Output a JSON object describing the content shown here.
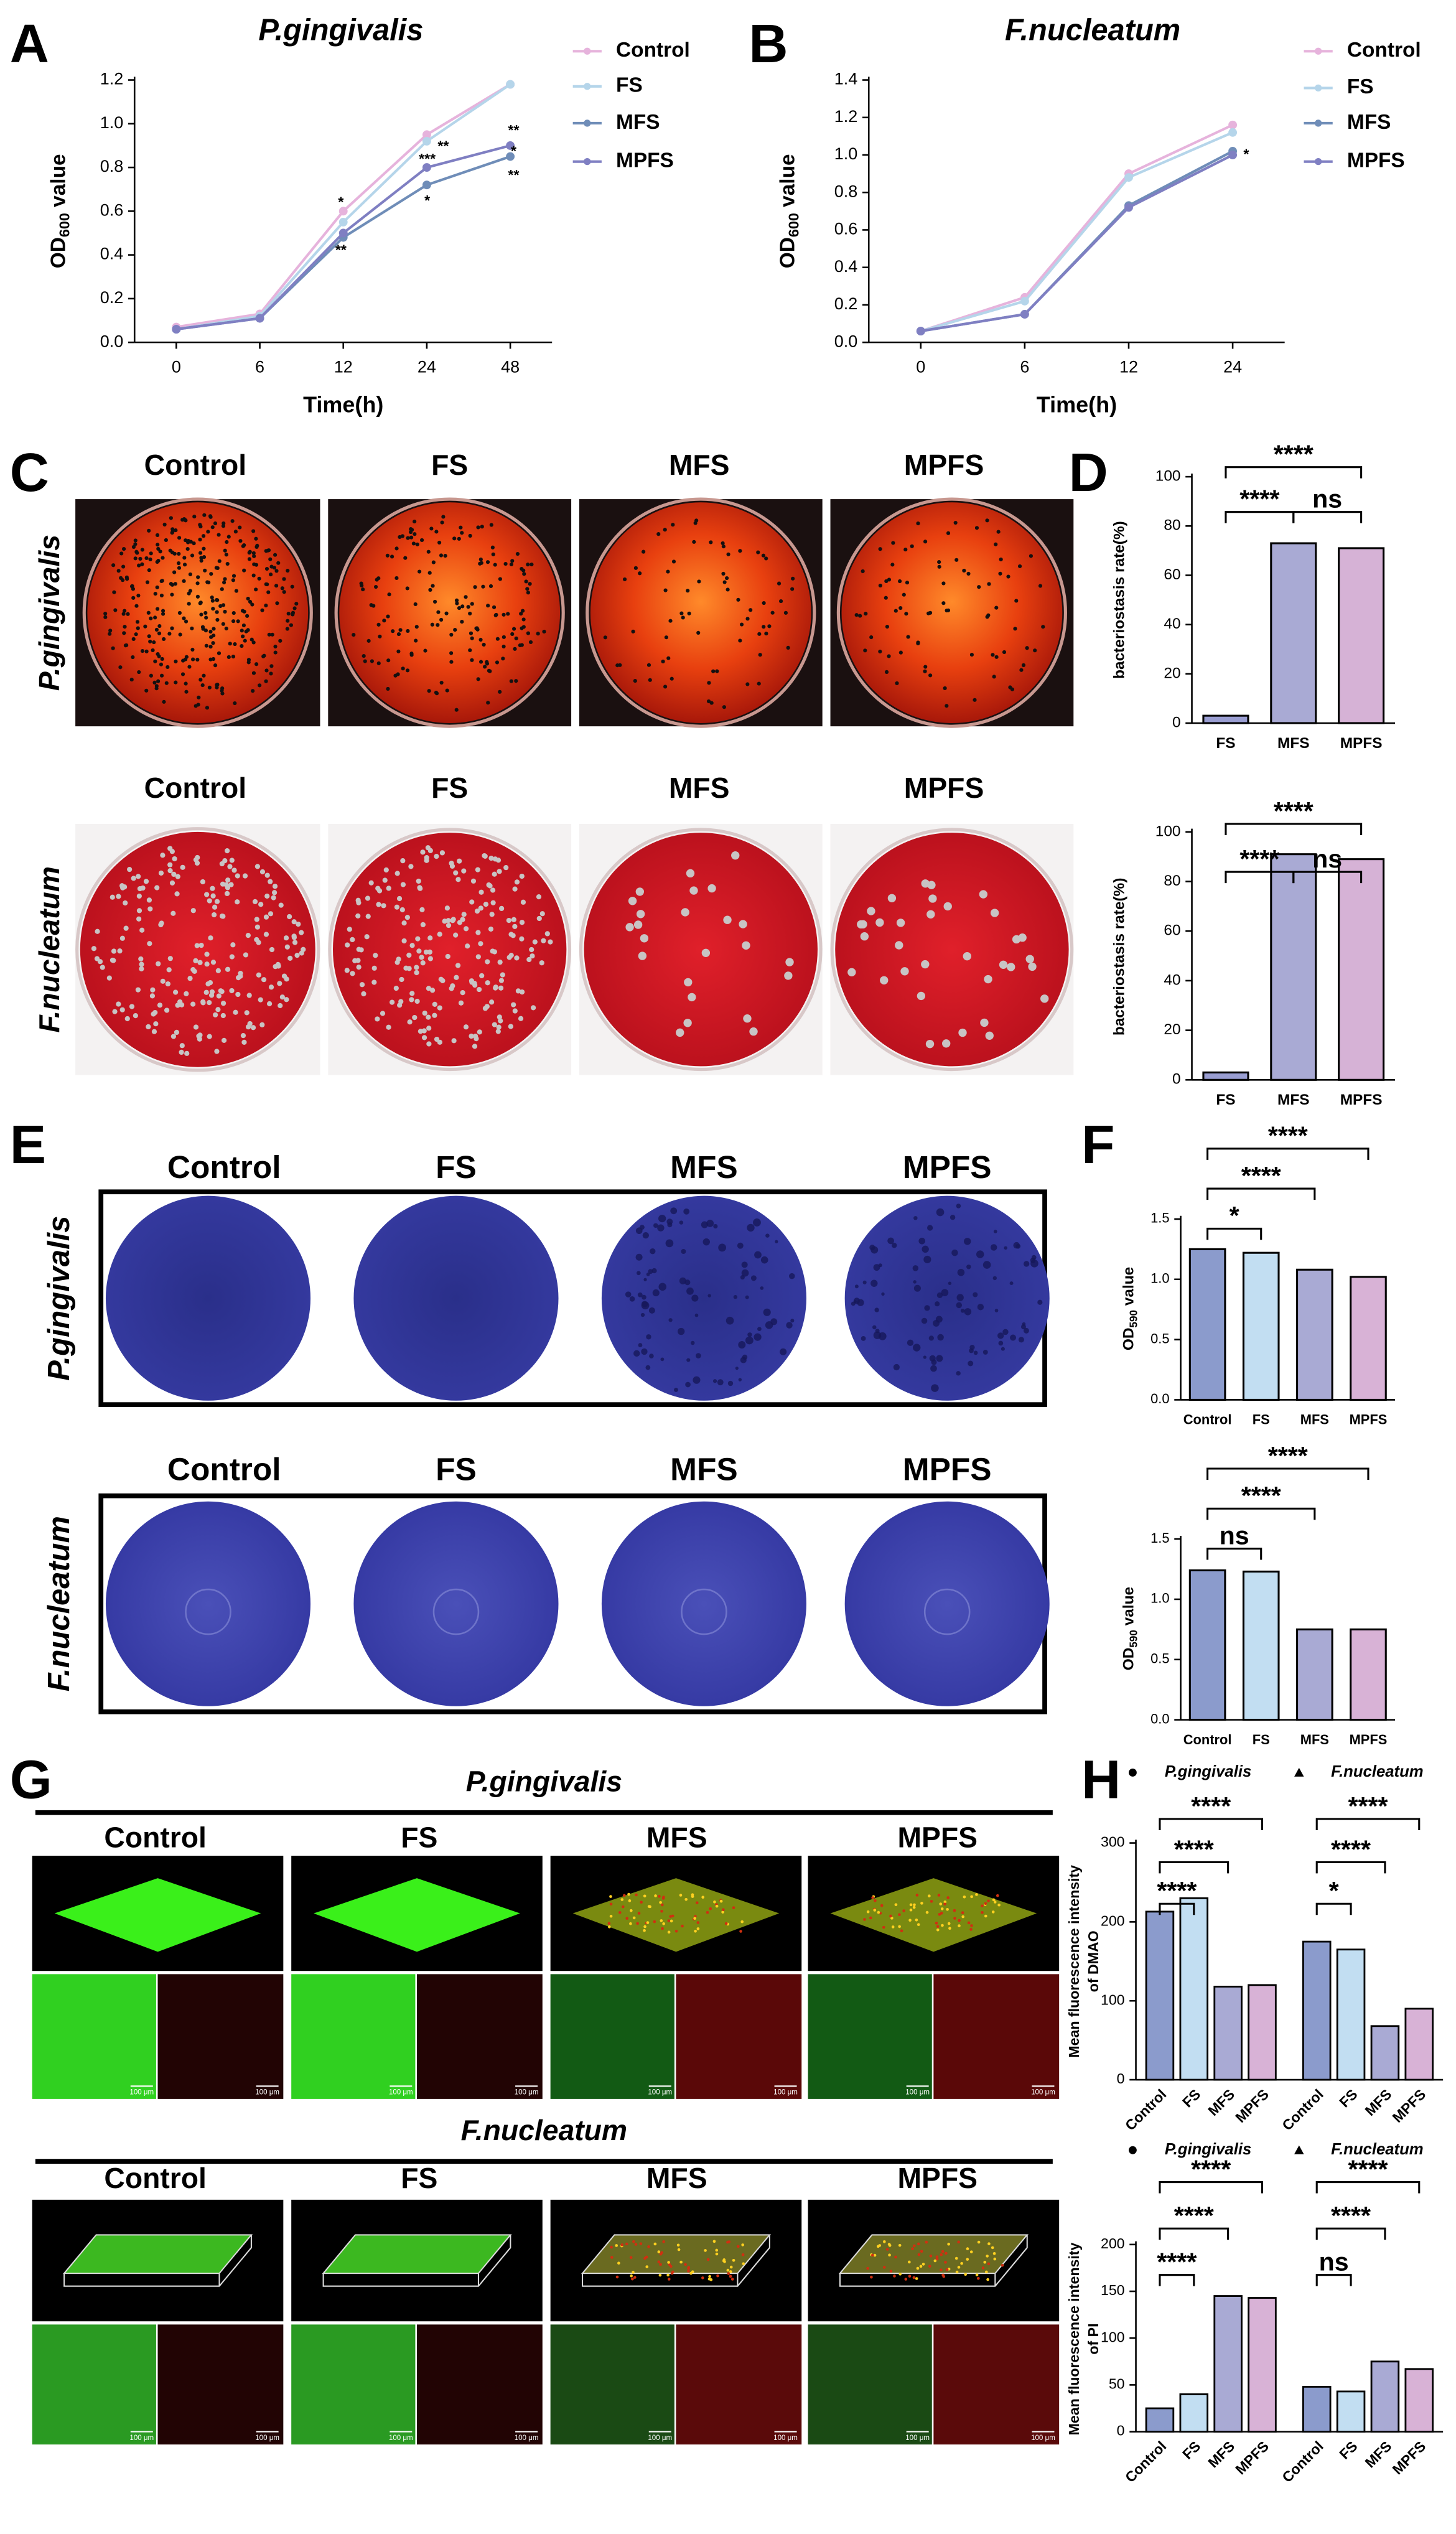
{
  "chart_data": [
    {
      "type": "line",
      "title": "P.gingivalis",
      "x_label": "Time(h)",
      "y_label": {
        "text": "OD",
        "subscript": "600",
        "suffix": " value"
      },
      "categories": [
        "0",
        "6",
        "12",
        "24",
        "48"
      ],
      "series": [
        {
          "name": "Control",
          "color": "#e6b3dc",
          "values": [
            0.07,
            0.13,
            0.6,
            0.95,
            1.18
          ]
        },
        {
          "name": "FS",
          "color": "#b5d5ea",
          "values": [
            0.06,
            0.12,
            0.55,
            0.92,
            1.18
          ]
        },
        {
          "name": "MFS",
          "color": "#6f8db8",
          "values": [
            0.06,
            0.11,
            0.48,
            0.72,
            0.85
          ]
        },
        {
          "name": "MPFS",
          "color": "#7f7fc2",
          "values": [
            0.06,
            0.11,
            0.5,
            0.8,
            0.9
          ]
        }
      ],
      "ylim": [
        0,
        1.2
      ],
      "yticks": [
        {
          "value": 0,
          "label": "0.0"
        },
        0.2,
        0.4,
        0.6,
        0.8,
        {
          "value": 1,
          "label": "1.0"
        },
        1.2
      ],
      "annotations": [
        "*",
        "**",
        "**",
        "***",
        "*",
        "**",
        "*",
        "**"
      ]
    },
    {
      "type": "line",
      "title": "F.nucleatum",
      "x_label": "Time(h)",
      "y_label": {
        "text": "OD",
        "subscript": "600",
        "suffix": " value"
      },
      "categories": [
        "0",
        "6",
        "12",
        "24"
      ],
      "series": [
        {
          "name": "Control",
          "color": "#e6b3dc",
          "values": [
            0.06,
            0.24,
            0.9,
            1.16
          ]
        },
        {
          "name": "FS",
          "color": "#b5d5ea",
          "values": [
            0.06,
            0.22,
            0.88,
            1.12
          ]
        },
        {
          "name": "MFS",
          "color": "#6f8db8",
          "values": [
            0.06,
            0.15,
            0.73,
            1.02
          ]
        },
        {
          "name": "MPFS",
          "color": "#7f7fc2",
          "values": [
            0.06,
            0.15,
            0.72,
            1.0
          ]
        }
      ],
      "ylim": [
        0,
        1.4
      ],
      "yticks": [
        {
          "value": 0,
          "label": "0.0"
        },
        0.2,
        0.4,
        0.6,
        0.8,
        {
          "value": 1,
          "label": "1.0"
        },
        1.2,
        1.4
      ],
      "annotations": [
        "*"
      ]
    },
    {
      "type": "bar",
      "y_label": "bacteriostasis rate(%)",
      "categories": [
        "FS",
        "MFS",
        "MPFS"
      ],
      "values": [
        3,
        73,
        71
      ],
      "colors": [
        "#9a9ed2",
        "#a9aad4",
        "#d6b2d6"
      ],
      "ylim": [
        0,
        100
      ],
      "yticks": [
        0,
        20,
        40,
        60,
        80,
        100
      ],
      "significance": [
        "****",
        "****",
        "ns"
      ]
    },
    {
      "type": "bar",
      "y_label": "bacteriostasis rate(%)",
      "categories": [
        "FS",
        "MFS",
        "MPFS"
      ],
      "values": [
        3,
        91,
        89
      ],
      "colors": [
        "#9a9ed2",
        "#a9aad4",
        "#d6b2d6"
      ],
      "ylim": [
        0,
        100
      ],
      "yticks": [
        0,
        20,
        40,
        60,
        80,
        100
      ],
      "significance": [
        "****",
        "****",
        "ns"
      ]
    },
    {
      "type": "bar",
      "y_label": {
        "text": "OD",
        "subscript": "590",
        "suffix": " value"
      },
      "categories": [
        "Control",
        "FS",
        "MFS",
        "MPFS"
      ],
      "values": [
        1.25,
        1.22,
        1.08,
        1.02
      ],
      "colors": [
        "#8b9bcc",
        "#c2def2",
        "#a9aad4",
        "#d8b2d6"
      ],
      "ylim": [
        0,
        1.5
      ],
      "yticks": [
        {
          "value": 0,
          "label": "0.0"
        },
        0.5,
        {
          "value": 1,
          "label": "1.0"
        },
        1.5
      ],
      "significance": [
        "*",
        "****",
        "****"
      ]
    },
    {
      "type": "bar",
      "y_label": {
        "text": "OD",
        "subscript": "590",
        "suffix": " value"
      },
      "categories": [
        "Control",
        "FS",
        "MFS",
        "MPFS"
      ],
      "values": [
        1.24,
        1.23,
        0.75,
        0.75
      ],
      "colors": [
        "#8b9bcc",
        "#c2def2",
        "#a9aad4",
        "#d8b2d6"
      ],
      "ylim": [
        0,
        1.5
      ],
      "yticks": [
        {
          "value": 0,
          "label": "0.0"
        },
        0.5,
        {
          "value": 1,
          "label": "1.0"
        },
        1.5
      ],
      "significance": [
        "ns",
        "****",
        "****"
      ]
    },
    {
      "type": "grouped_bar",
      "y_label": [
        "Mean fluorescence intensity",
        "of DMAO"
      ],
      "categories": [
        "Control",
        "FS",
        "MFS",
        "MPFS"
      ],
      "colors": [
        "#8b9bcc",
        "#c2def2",
        "#a9aad4",
        "#d8b2d6"
      ],
      "series": [
        {
          "name": "P.gingivalis",
          "values": [
            213,
            230,
            118,
            120
          ],
          "significance": [
            "****",
            "****",
            "****"
          ]
        },
        {
          "name": "F.nucleatum",
          "values": [
            175,
            165,
            68,
            90
          ],
          "significance": [
            "*",
            "****",
            "****"
          ]
        }
      ],
      "ylim": [
        0,
        300
      ],
      "yticks": [
        0,
        100,
        200,
        300
      ]
    },
    {
      "type": "grouped_bar",
      "y_label": [
        "Mean fluorescence intensity",
        "of PI"
      ],
      "categories": [
        "Control",
        "FS",
        "MFS",
        "MPFS"
      ],
      "colors": [
        "#8b9bcc",
        "#c2def2",
        "#a9aad4",
        "#d8b2d6"
      ],
      "series": [
        {
          "name": "P.gingivalis",
          "values": [
            25,
            40,
            145,
            143
          ],
          "significance": [
            "****",
            "****",
            "****"
          ]
        },
        {
          "name": "F.nucleatum",
          "values": [
            48,
            43,
            75,
            67
          ],
          "significance": [
            "ns",
            "****",
            "****"
          ]
        }
      ],
      "ylim": [
        0,
        200
      ],
      "yticks": [
        0,
        50,
        100,
        150,
        200
      ]
    }
  ],
  "panels": {
    "letters": [
      "A",
      "B",
      "C",
      "D",
      "E",
      "F",
      "G",
      "H"
    ],
    "plates": {
      "columns": [
        "Control",
        "FS",
        "MFS",
        "MPFS"
      ],
      "rows": [
        "P.gingivalis",
        "F.nucleatum"
      ]
    },
    "biofilm": {
      "columns": [
        "Control",
        "FS",
        "MFS",
        "MPFS"
      ],
      "rows": [
        "P.gingivalis",
        "F.nucleatum"
      ]
    },
    "confocal": {
      "titles": [
        "P.gingivalis",
        "F.nucleatum"
      ],
      "columns": [
        "Control",
        "FS",
        "MFS",
        "MPFS"
      ],
      "scale_bar": "100 μm"
    }
  }
}
